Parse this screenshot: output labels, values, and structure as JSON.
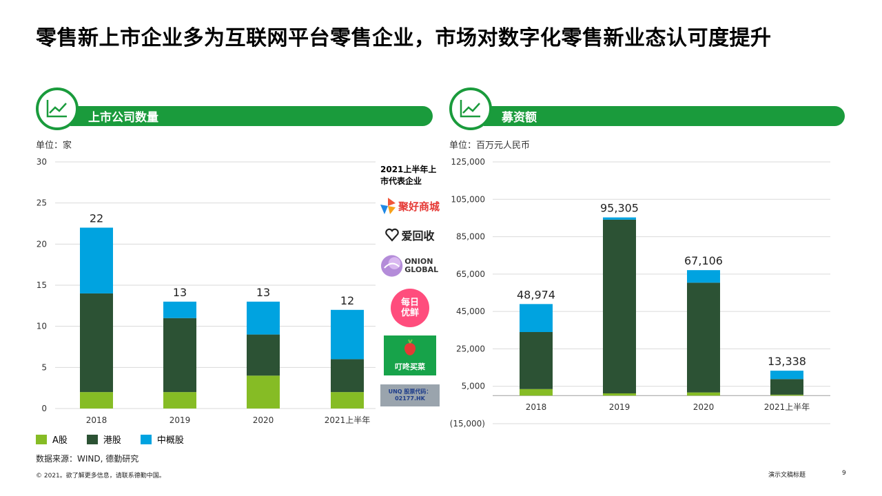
{
  "title": "零售新上市企业多为互联网平台零售企业，市场对数字化零售新业态认可度提升",
  "left_panel": {
    "header": "上市公司数量",
    "unit": "单位：家"
  },
  "right_panel": {
    "header": "募资额",
    "unit": "单位：百万元人民币"
  },
  "legend": [
    {
      "label": "A股",
      "color": "#86bc25"
    },
    {
      "label": "港股",
      "color": "#2c5234"
    },
    {
      "label": "中概股",
      "color": "#00a3e0"
    }
  ],
  "representatives": {
    "title": "2021上半年上市代表企业",
    "logos": [
      {
        "name": "聚好商城",
        "icon": "juhao-logo-icon"
      },
      {
        "name": "爱回收",
        "icon": "aihuishou-logo-icon"
      },
      {
        "name": "ONION GLOBAL",
        "icon": "onion-logo-icon"
      },
      {
        "name": "每日优鲜",
        "icon": "missfresh-logo-icon"
      },
      {
        "name": "叮咚买菜",
        "icon": "dingdong-logo-icon"
      },
      {
        "name": "UNQ 股票代码：02177.HK",
        "icon": "unq-logo-icon"
      }
    ]
  },
  "source": "数据来源：WIND, 德勤研究",
  "footer": {
    "copyright": "© 2021。欲了解更多信息，请联系德勤中国。",
    "doc_title": "演示文稿标题",
    "page": "9"
  },
  "chart_data": [
    {
      "type": "bar",
      "stacked": true,
      "categories": [
        "2018",
        "2019",
        "2020",
        "2021上半年"
      ],
      "series": [
        {
          "name": "A股",
          "values": [
            2,
            2,
            4,
            2
          ]
        },
        {
          "name": "港股",
          "values": [
            12,
            9,
            5,
            4
          ]
        },
        {
          "name": "中概股",
          "values": [
            8,
            2,
            4,
            6
          ]
        }
      ],
      "totals": [
        "22",
        "13",
        "13",
        "12"
      ],
      "ylim": [
        0,
        30
      ],
      "yticks": [
        "0",
        "5",
        "10",
        "15",
        "20",
        "25",
        "30"
      ],
      "grid": true
    },
    {
      "type": "bar",
      "stacked": true,
      "categories": [
        "2018",
        "2019",
        "2020",
        "2021上半年"
      ],
      "series": [
        {
          "name": "A股",
          "values": [
            3500,
            1200,
            1700,
            500
          ]
        },
        {
          "name": "港股",
          "values": [
            30500,
            92905,
            58706,
            8338
          ]
        },
        {
          "name": "中概股",
          "values": [
            14974,
            1200,
            6700,
            4500
          ]
        }
      ],
      "totals": [
        "48,974",
        "95,305",
        "67,106",
        "13,338"
      ],
      "ylim": [
        -15000,
        125000
      ],
      "yticks": [
        "(15,000)",
        "5,000",
        "25,000",
        "45,000",
        "65,000",
        "85,000",
        "105,000",
        "125,000"
      ],
      "ytick_values": [
        -15000,
        5000,
        25000,
        45000,
        65000,
        85000,
        105000,
        125000
      ],
      "grid": true
    }
  ]
}
